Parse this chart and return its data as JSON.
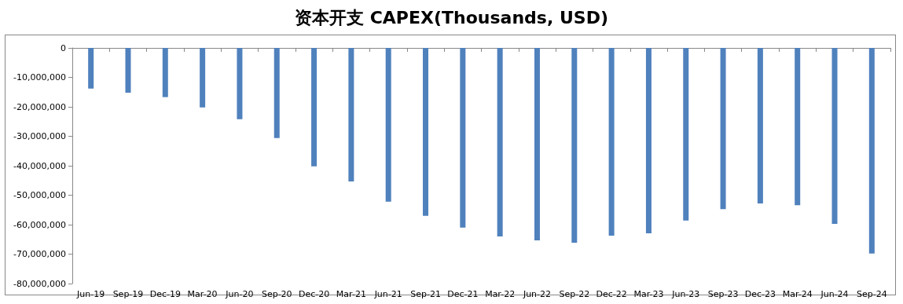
{
  "chart_data": {
    "type": "bar",
    "title": "资本开支 CAPEX(Thousands, USD)",
    "categories": [
      "Jun-19",
      "Sep-19",
      "Dec-19",
      "Mar-20",
      "Jun-20",
      "Sep-20",
      "Dec-20",
      "Mar-21",
      "Jun-21",
      "Sep-21",
      "Dec-21",
      "Mar-22",
      "Jun-22",
      "Sep-22",
      "Dec-22",
      "Mar-23",
      "Jun-23",
      "Sep-23",
      "Dec-23",
      "Mar-24",
      "Jun-24",
      "Sep-24"
    ],
    "values": [
      -13800000,
      -15200000,
      -16700000,
      -20200000,
      -24200000,
      -30600000,
      -40200000,
      -45300000,
      -52200000,
      -57000000,
      -61000000,
      -64000000,
      -65300000,
      -66100000,
      -63700000,
      -62900000,
      -58600000,
      -54700000,
      -52800000,
      -53400000,
      -59700000,
      -69800000
    ],
    "color": "#4f81bd",
    "ylim": [
      -80000000,
      0
    ],
    "yticks": [
      {
        "value": -80000000,
        "label": "-80,000,000"
      },
      {
        "value": -70000000,
        "label": "-70,000,000"
      },
      {
        "value": -60000000,
        "label": "-60,000,000"
      },
      {
        "value": -50000000,
        "label": "-50,000,000"
      },
      {
        "value": -40000000,
        "label": "-40,000,000"
      },
      {
        "value": -30000000,
        "label": "-30,000,000"
      },
      {
        "value": -20000000,
        "label": "-20,000,000"
      },
      {
        "value": -10000000,
        "label": "-10,000,000"
      },
      0
    ],
    "grid": false
  }
}
